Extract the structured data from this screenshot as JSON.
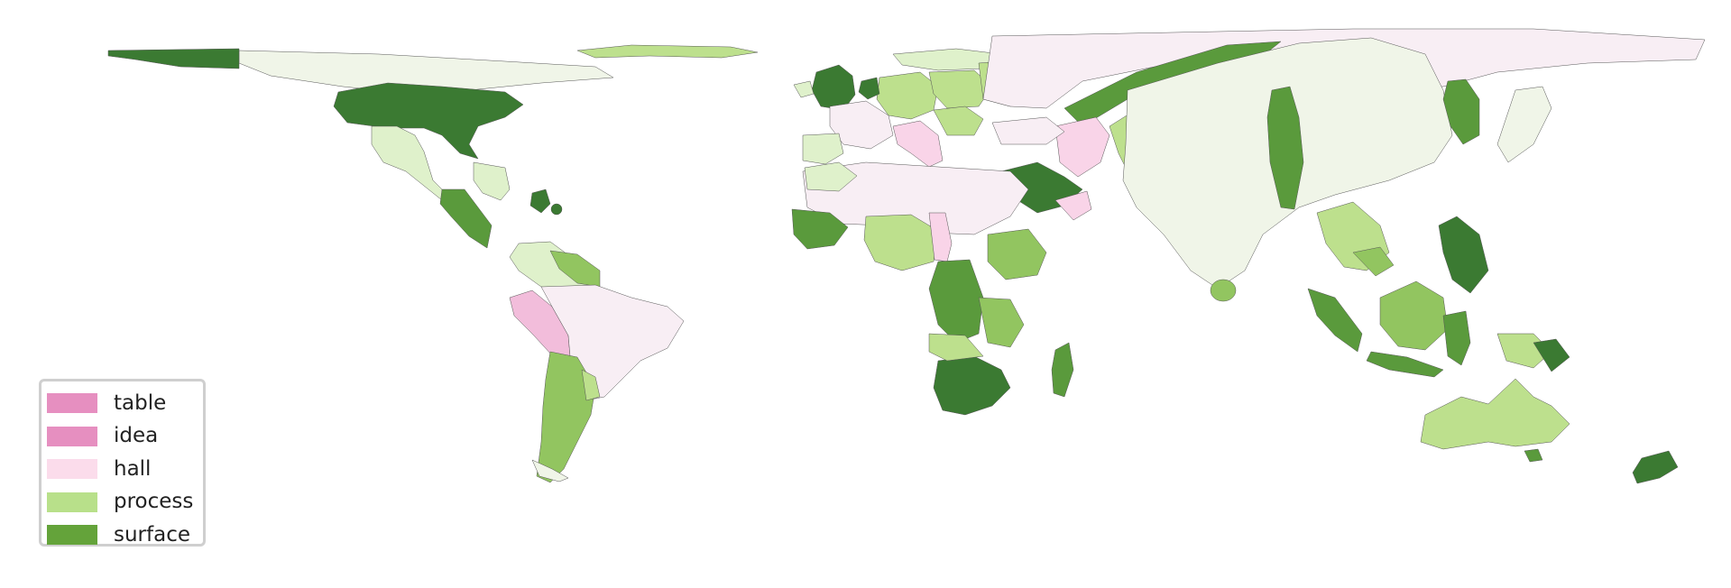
{
  "map": {
    "colors": {
      "dark_green": "#3b7a32",
      "mid_green": "#5a9a3c",
      "green": "#92c560",
      "light_green": "#bde08d",
      "pale_green": "#dff1cb",
      "lightest_green": "#f0f5e8",
      "pale_pink": "#f8eef4",
      "light_pink": "#f9d4e8",
      "pink": "#f2bddb",
      "outline": "#555555"
    },
    "legend": {
      "items": [
        {
          "label": "table",
          "color": "#e68fc0"
        },
        {
          "label": "idea",
          "color": "#e68fc0"
        },
        {
          "label": "hall",
          "color": "#fbdceb"
        },
        {
          "label": "process",
          "color": "#b8e08a"
        },
        {
          "label": "surface",
          "color": "#64a33a"
        }
      ]
    }
  }
}
